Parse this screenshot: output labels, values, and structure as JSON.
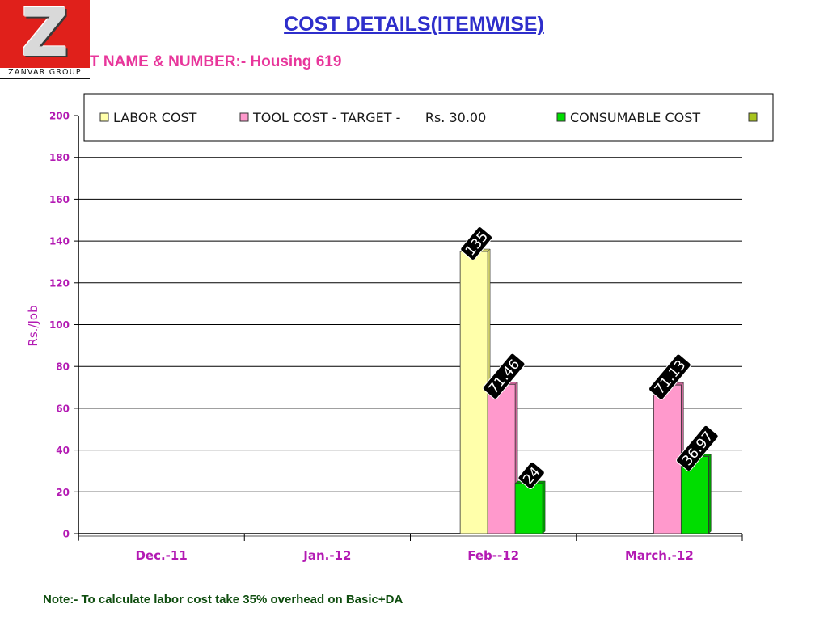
{
  "logo": {
    "letter": "Z",
    "text": "ZANVAR GROUP"
  },
  "title": "COST DETAILS(ITEMWISE)",
  "subtitle": "T NAME & NUMBER:- Housing 619",
  "note": "Note:- To calculate labor cost take 35% overhead on Basic+DA",
  "chart_data": {
    "type": "bar",
    "categories": [
      "Dec.-11",
      "Jan.-12",
      "Feb--12",
      "March.-12"
    ],
    "series": [
      {
        "name": "LABOR COST",
        "color": "#ffffaa",
        "values": [
          null,
          null,
          135,
          null
        ],
        "labels": [
          "",
          "",
          "135",
          ""
        ]
      },
      {
        "name": "TOOL COST - TARGET -      Rs. 30.00",
        "color": "#ff99cc",
        "values": [
          null,
          null,
          71.46,
          71.13
        ],
        "labels": [
          "",
          "",
          "71.46",
          "71.13"
        ]
      },
      {
        "name": "CONSUMABLE COST",
        "color": "#00dd00",
        "values": [
          null,
          null,
          24,
          36.97
        ],
        "labels": [
          "",
          "",
          "24",
          "36.97"
        ]
      },
      {
        "name": "",
        "color": "#a8c41e",
        "values": [
          null,
          null,
          null,
          null
        ],
        "labels": [
          "",
          "",
          "",
          ""
        ]
      }
    ],
    "ylabel": "Rs./Job",
    "xlabel": "",
    "ylim": [
      0,
      200
    ],
    "yticks": [
      0,
      20,
      40,
      60,
      80,
      100,
      120,
      140,
      160,
      180,
      200
    ],
    "grid": true,
    "legend": "top"
  },
  "colors": {
    "axis_text": "#b31ab3",
    "title": "#2e2ecb",
    "subtitle": "#e8369b",
    "note": "#0f4d0f",
    "label_bg": "#000000"
  }
}
